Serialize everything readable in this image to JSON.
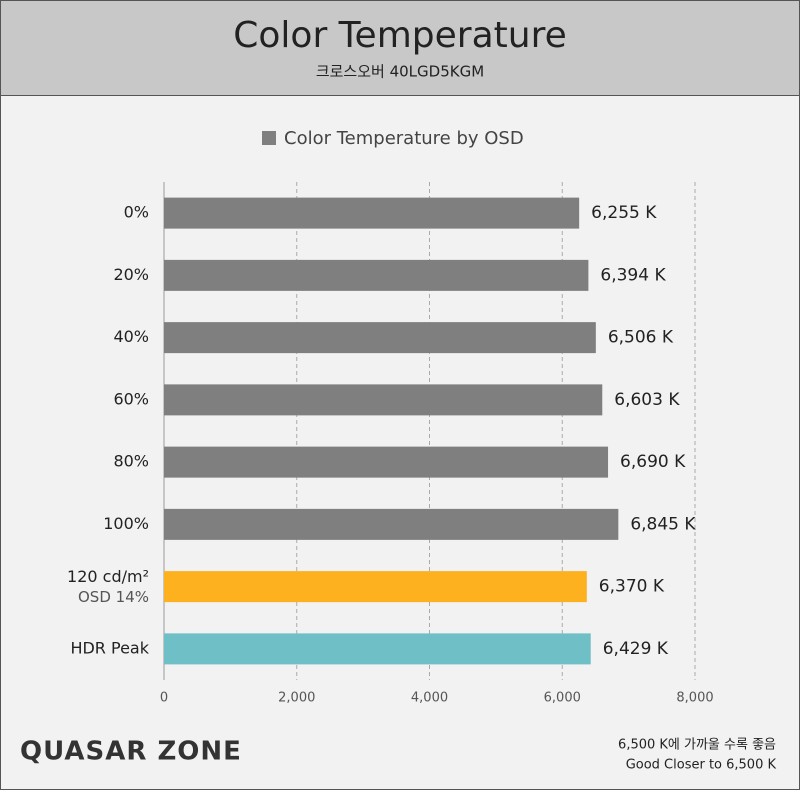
{
  "chart_data": {
    "type": "hbar",
    "title": "Color Temperature",
    "subtitle": "크로스오버 40LGD5KGM",
    "legend": {
      "label": "Color Temperature by OSD",
      "color": "#7f7f7f"
    },
    "categories": [
      "0%",
      "20%",
      "40%",
      "60%",
      "80%",
      "100%",
      {
        "label": "120 cd/m²",
        "note": "OSD 14%"
      },
      "HDR Peak"
    ],
    "values": [
      6255,
      6394,
      6506,
      6603,
      6690,
      6845,
      6370,
      6429
    ],
    "value_labels": [
      "6,255 K",
      "6,394 K",
      "6,506 K",
      "6,603 K",
      "6,690 K",
      "6,845 K",
      "6,370 K",
      "6,429 K"
    ],
    "colors": [
      "#7f7f7f",
      "#7f7f7f",
      "#7f7f7f",
      "#7f7f7f",
      "#7f7f7f",
      "#7f7f7f",
      "#fdb11f",
      "#6fbfc6"
    ],
    "xlim": [
      0,
      8000
    ],
    "xticks": [
      0,
      {
        "value": 2000,
        "label": "2,000"
      },
      {
        "value": 4000,
        "label": "4,000"
      },
      {
        "value": 6000,
        "label": "6,000"
      },
      {
        "value": 8000,
        "label": "8,000"
      }
    ],
    "grid": true,
    "notes": [
      "6,500 K에 가까울 수록 좋음",
      "Good Closer to 6,500 K"
    ],
    "watermark": "QUASAR ZONE"
  }
}
